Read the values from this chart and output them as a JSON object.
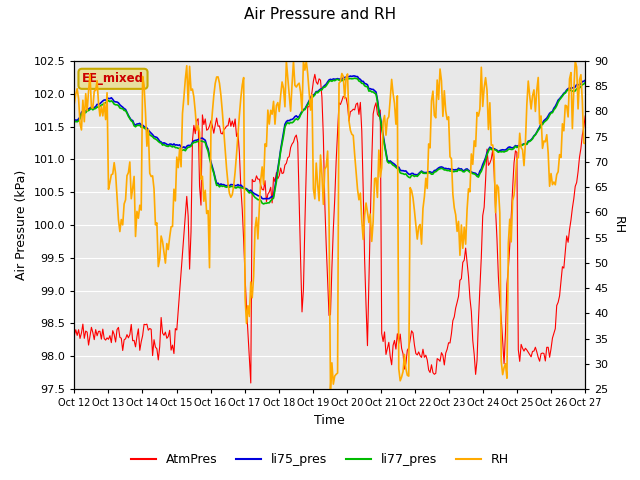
{
  "title": "Air Pressure and RH",
  "xlabel": "Time",
  "ylabel_left": "Air Pressure (kPa)",
  "ylabel_right": "RH",
  "ylim_left": [
    97.5,
    102.5
  ],
  "ylim_right": [
    25,
    90
  ],
  "yticks_left": [
    97.5,
    98.0,
    98.5,
    99.0,
    99.5,
    100.0,
    100.5,
    101.0,
    101.5,
    102.0,
    102.5
  ],
  "yticks_right": [
    25,
    30,
    35,
    40,
    45,
    50,
    55,
    60,
    65,
    70,
    75,
    80,
    85,
    90
  ],
  "xtick_labels": [
    "Oct 12",
    "Oct 13",
    "Oct 14",
    "Oct 15",
    "Oct 16",
    "Oct 17",
    "Oct 18",
    "Oct 19",
    "Oct 20",
    "Oct 21",
    "Oct 22",
    "Oct 23",
    "Oct 24",
    "Oct 25",
    "Oct 26",
    "Oct 27"
  ],
  "annotation_text": "EE_mixed",
  "annotation_bg": "#e8dfa0",
  "annotation_edge": "#c8aa00",
  "colors": {
    "AtmPres": "#ff0000",
    "li75_pres": "#0000dd",
    "li77_pres": "#00bb00",
    "RH": "#ffaa00"
  },
  "linewidths": {
    "AtmPres": 0.8,
    "li75_pres": 1.2,
    "li77_pres": 1.2,
    "RH": 1.2
  },
  "plot_bg_color": "#e8e8e8",
  "fig_bg_color": "#ffffff",
  "grid_color": "#ffffff"
}
